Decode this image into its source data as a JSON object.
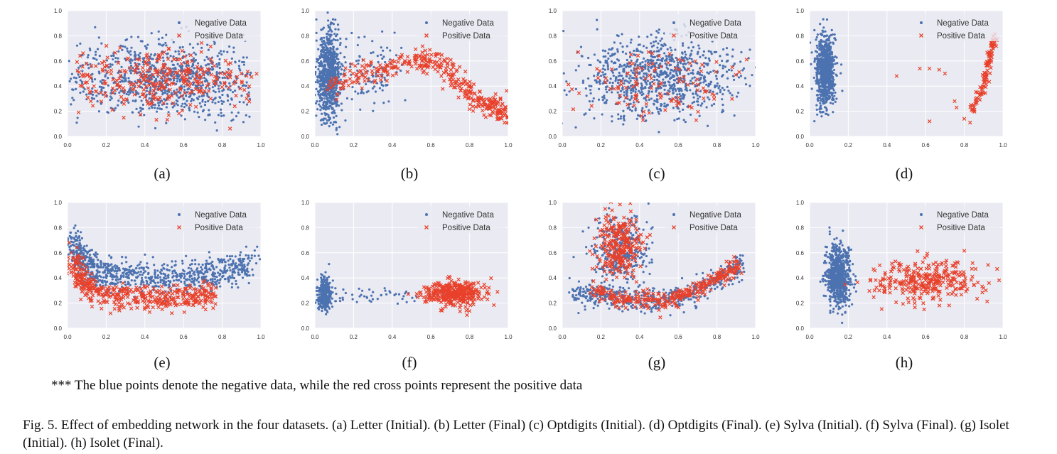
{
  "note": "*** The blue points denote the negative data, while the red cross points represent the positive data",
  "caption": "Fig. 5.   Effect of embedding network in the four datasets. (a) Letter (Initial). (b) Letter (Final) (c) Optdigits (Initial). (d) Optdigits (Final). (e) Sylva (Initial). (f) Sylva (Final). (g) Isolet (Initial). (h) Isolet (Final).",
  "colors": {
    "negative": "#4c72b0",
    "positive": "#e8412b",
    "panel_bg": "#eaeaf2",
    "grid": "#ffffff"
  },
  "chart_data": [
    {
      "type": "scatter",
      "label": "(a)",
      "xlim": [
        0,
        1
      ],
      "ylim": [
        0,
        1
      ],
      "ticks": [
        "0.0",
        "0.2",
        "0.4",
        "0.6",
        "0.8",
        "1.0"
      ],
      "grid": true,
      "legend": "top-right",
      "series": [
        {
          "name": "Negative Data",
          "marker": "dot",
          "clusters": [
            {
              "cx": 0.5,
              "cy": 0.46,
              "sx": 0.26,
              "sy": 0.15,
              "n": 900,
              "xmin": 0.0,
              "xmax": 0.95
            }
          ]
        },
        {
          "name": "Positive Data",
          "marker": "x",
          "clusters": [
            {
              "cx": 0.5,
              "cy": 0.46,
              "sx": 0.25,
              "sy": 0.12,
              "n": 320,
              "xmin": 0.03,
              "xmax": 0.98
            }
          ]
        }
      ]
    },
    {
      "type": "scatter",
      "label": "(b)",
      "xlim": [
        0,
        1
      ],
      "ylim": [
        0,
        1
      ],
      "ticks": [
        "0.0",
        "0.2",
        "0.4",
        "0.6",
        "0.8",
        "1.0"
      ],
      "grid": true,
      "legend": "top-right",
      "series": [
        {
          "name": "Negative Data",
          "marker": "dot",
          "clusters": [
            {
              "cx": 0.07,
              "cy": 0.48,
              "sx": 0.03,
              "sy": 0.17,
              "n": 800
            },
            {
              "cx": 0.25,
              "cy": 0.5,
              "sx": 0.12,
              "sy": 0.15,
              "n": 120
            }
          ]
        },
        {
          "name": "Positive Data",
          "marker": "x",
          "curve": [
            [
              0.08,
              0.42
            ],
            [
              0.3,
              0.53
            ],
            [
              0.55,
              0.62
            ],
            [
              0.68,
              0.55
            ],
            [
              0.8,
              0.33
            ],
            [
              0.9,
              0.23
            ],
            [
              1.0,
              0.18
            ]
          ],
          "spread": 0.05,
          "n": 380
        }
      ]
    },
    {
      "type": "scatter",
      "label": "(c)",
      "xlim": [
        0,
        1
      ],
      "ylim": [
        0,
        1
      ],
      "ticks": [
        "0.0",
        "0.2",
        "0.4",
        "0.6",
        "0.8",
        "1.0"
      ],
      "grid": true,
      "legend": "top-right",
      "series": [
        {
          "name": "Negative Data",
          "marker": "dot",
          "clusters": [
            {
              "cx": 0.5,
              "cy": 0.48,
              "sx": 0.2,
              "sy": 0.16,
              "n": 900
            }
          ]
        },
        {
          "name": "Positive Data",
          "marker": "x",
          "clusters": [
            {
              "cx": 0.5,
              "cy": 0.42,
              "sx": 0.2,
              "sy": 0.12,
              "n": 120
            }
          ]
        }
      ]
    },
    {
      "type": "scatter",
      "label": "(d)",
      "xlim": [
        0,
        1
      ],
      "ylim": [
        0,
        1
      ],
      "ticks": [
        "0.0",
        "0.2",
        "0.4",
        "0.6",
        "0.8",
        "1.0"
      ],
      "grid": true,
      "legend": "top-right",
      "series": [
        {
          "name": "Negative Data",
          "marker": "dot",
          "clusters": [
            {
              "cx": 0.08,
              "cy": 0.52,
              "sx": 0.025,
              "sy": 0.14,
              "n": 800
            }
          ]
        },
        {
          "name": "Positive Data",
          "marker": "x",
          "curve": [
            [
              0.84,
              0.2
            ],
            [
              0.9,
              0.4
            ],
            [
              0.93,
              0.62
            ],
            [
              0.96,
              0.8
            ]
          ],
          "spread": 0.02,
          "n": 110,
          "extra": [
            [
              0.45,
              0.48
            ],
            [
              0.57,
              0.54
            ],
            [
              0.62,
              0.54
            ],
            [
              0.67,
              0.53
            ],
            [
              0.7,
              0.5
            ],
            [
              0.75,
              0.28
            ],
            [
              0.76,
              0.23
            ],
            [
              0.62,
              0.12
            ],
            [
              0.8,
              0.14
            ],
            [
              0.83,
              0.11
            ]
          ]
        }
      ]
    },
    {
      "type": "scatter",
      "label": "(e)",
      "xlim": [
        0,
        1
      ],
      "ylim": [
        0,
        1
      ],
      "ticks": [
        "0.0",
        "0.2",
        "0.4",
        "0.6",
        "0.8",
        "1.0"
      ],
      "grid": true,
      "legend": "top-right",
      "series": [
        {
          "name": "Negative Data",
          "marker": "dot",
          "curve": [
            [
              0.02,
              0.7
            ],
            [
              0.08,
              0.52
            ],
            [
              0.2,
              0.42
            ],
            [
              0.4,
              0.4
            ],
            [
              0.6,
              0.4
            ],
            [
              0.8,
              0.45
            ],
            [
              0.97,
              0.52
            ]
          ],
          "spread": 0.06,
          "n": 900
        },
        {
          "name": "Positive Data",
          "marker": "x",
          "curve": [
            [
              0.02,
              0.55
            ],
            [
              0.08,
              0.35
            ],
            [
              0.2,
              0.26
            ],
            [
              0.4,
              0.24
            ],
            [
              0.6,
              0.24
            ],
            [
              0.75,
              0.27
            ]
          ],
          "spread": 0.05,
          "n": 450
        }
      ]
    },
    {
      "type": "scatter",
      "label": "(f)",
      "xlim": [
        0,
        1
      ],
      "ylim": [
        0,
        1
      ],
      "ticks": [
        "0.0",
        "0.2",
        "0.4",
        "0.6",
        "0.8",
        "1.0"
      ],
      "grid": true,
      "legend": "top-right",
      "series": [
        {
          "name": "Negative Data",
          "marker": "dot",
          "clusters": [
            {
              "cx": 0.05,
              "cy": 0.27,
              "sx": 0.018,
              "sy": 0.06,
              "n": 350
            },
            {
              "cx": 0.3,
              "cy": 0.26,
              "sx": 0.15,
              "sy": 0.03,
              "n": 50
            }
          ]
        },
        {
          "name": "Positive Data",
          "marker": "x",
          "clusters": [
            {
              "cx": 0.72,
              "cy": 0.28,
              "sx": 0.08,
              "sy": 0.05,
              "n": 380
            }
          ]
        }
      ]
    },
    {
      "type": "scatter",
      "label": "(g)",
      "xlim": [
        0,
        1
      ],
      "ylim": [
        0,
        1
      ],
      "ticks": [
        "0.0",
        "0.2",
        "0.4",
        "0.6",
        "0.8",
        "1.0"
      ],
      "grid": true,
      "legend": "top-right",
      "series": [
        {
          "name": "Negative Data",
          "marker": "dot",
          "clusters": [
            {
              "cx": 0.3,
              "cy": 0.62,
              "sx": 0.07,
              "sy": 0.14,
              "n": 350
            }
          ],
          "curve": [
            [
              0.05,
              0.26
            ],
            [
              0.2,
              0.27
            ],
            [
              0.35,
              0.23
            ],
            [
              0.5,
              0.2
            ],
            [
              0.65,
              0.26
            ],
            [
              0.8,
              0.38
            ],
            [
              0.93,
              0.52
            ]
          ],
          "spread": 0.05,
          "n": 500
        },
        {
          "name": "Positive Data",
          "marker": "x",
          "clusters": [
            {
              "cx": 0.3,
              "cy": 0.66,
              "sx": 0.06,
              "sy": 0.12,
              "n": 260
            }
          ],
          "curve": [
            [
              0.15,
              0.3
            ],
            [
              0.3,
              0.24
            ],
            [
              0.5,
              0.2
            ],
            [
              0.65,
              0.28
            ],
            [
              0.8,
              0.4
            ],
            [
              0.92,
              0.5
            ]
          ],
          "spread": 0.035,
          "n": 300
        }
      ]
    },
    {
      "type": "scatter",
      "label": "(h)",
      "xlim": [
        0,
        1
      ],
      "ylim": [
        0,
        1
      ],
      "ticks": [
        "0.0",
        "0.2",
        "0.4",
        "0.6",
        "0.8",
        "1.0"
      ],
      "grid": true,
      "legend": "top-right",
      "series": [
        {
          "name": "Negative Data",
          "marker": "dot",
          "clusters": [
            {
              "cx": 0.15,
              "cy": 0.42,
              "sx": 0.03,
              "sy": 0.12,
              "n": 750
            }
          ]
        },
        {
          "name": "Positive Data",
          "marker": "x",
          "clusters": [
            {
              "cx": 0.62,
              "cy": 0.38,
              "sx": 0.15,
              "sy": 0.08,
              "n": 320
            }
          ]
        }
      ]
    }
  ]
}
